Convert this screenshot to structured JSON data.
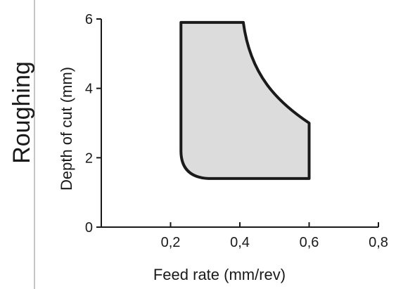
{
  "side_label": "Roughing",
  "chart_data": {
    "type": "area",
    "title": "",
    "xlabel": "Feed rate (mm/rev)",
    "ylabel": "Depth of cut (mm)",
    "xlim": [
      0,
      0.8
    ],
    "ylim": [
      0,
      6
    ],
    "x_ticks": [
      0.2,
      0.4,
      0.6,
      0.8
    ],
    "x_tick_labels": [
      "0,2",
      "0,4",
      "0,6",
      "0,8"
    ],
    "y_ticks": [
      0,
      2,
      4,
      6
    ],
    "y_tick_labels": [
      "0",
      "2",
      "4",
      "6"
    ],
    "grid": false,
    "series": [
      {
        "fill_color": "#dcdcdc",
        "stroke_color": "#1a1a1a",
        "boundary": [
          {
            "x": 0.23,
            "y": 5.9
          },
          {
            "x": 0.41,
            "y": 5.9
          },
          {
            "x": 0.6,
            "y": 3.0
          },
          {
            "x": 0.6,
            "y": 1.4
          },
          {
            "x": 0.31,
            "y": 1.4
          },
          {
            "x": 0.23,
            "y": 2.2
          }
        ]
      }
    ]
  }
}
